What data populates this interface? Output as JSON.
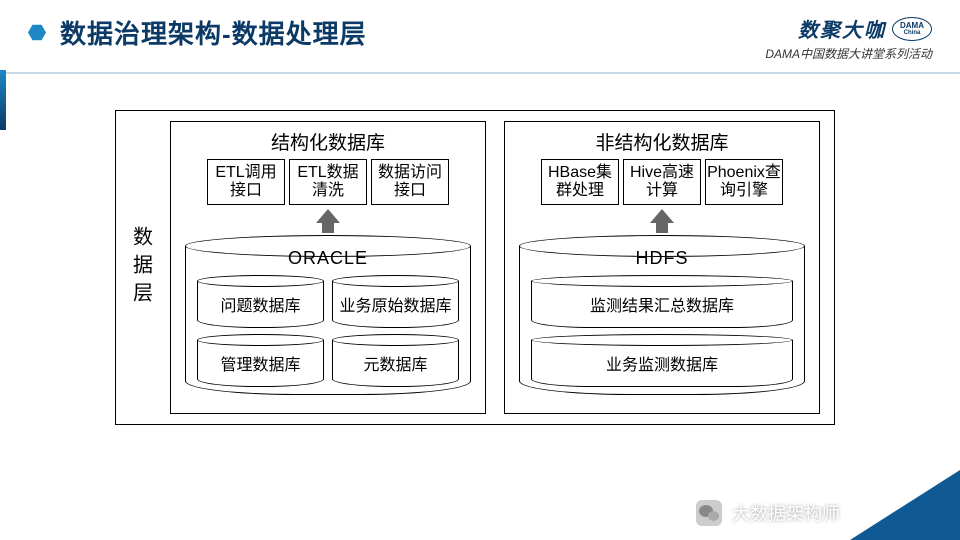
{
  "header": {
    "title": "数据治理架构-数据处理层",
    "title_color": "#0b3a66",
    "accent_color": "#1e88c7",
    "brand_cn": "数聚大咖",
    "brand_logo_top": "DAMA",
    "brand_logo_bottom": "China",
    "brand_sub": "DAMA中国数据大讲堂系列活动"
  },
  "diagram": {
    "side_label": "数据层",
    "border_color": "#000000",
    "background": "#ffffff",
    "panels": [
      {
        "title": "结构化数据库",
        "boxes": [
          "ETL调用接口",
          "ETL数据清洗",
          "数据访问接口"
        ],
        "db_label": "ORACLE",
        "sub_layout": "2x2",
        "sub_dbs": [
          "问题数据库",
          "业务原始数据库",
          "管理数据库",
          "元数据库"
        ]
      },
      {
        "title": "非结构化数据库",
        "boxes": [
          "HBase集群处理",
          "Hive高速计算",
          "Phoenix查询引擎"
        ],
        "db_label": "HDFS",
        "sub_layout": "1x2",
        "sub_dbs": [
          "监测结果汇总数据库",
          "业务监测数据库"
        ]
      }
    ],
    "arrow_color": "#666666"
  },
  "footer": {
    "label": "大数据架构师",
    "corner_color": "#0f5a94"
  }
}
